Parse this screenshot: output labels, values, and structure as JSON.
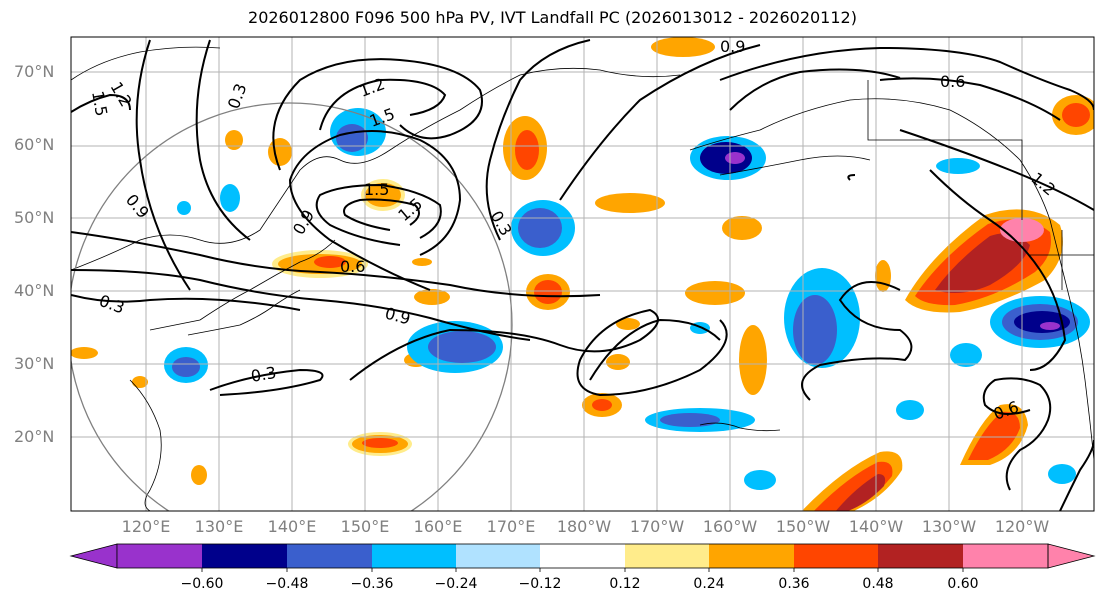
{
  "title": "2026012800 F096 500 hPa PV, IVT Landfall PC (2026013012 - 2026020112)",
  "lat_labels": [
    "70°N",
    "60°N",
    "50°N",
    "40°N",
    "30°N",
    "20°N"
  ],
  "lon_labels": [
    "120°E",
    "130°E",
    "140°E",
    "150°E",
    "160°E",
    "170°E",
    "180°W",
    "170°W",
    "160°W",
    "150°W",
    "140°W",
    "130°W",
    "120°W"
  ],
  "colorbar": {
    "ticks": [
      "−0.60",
      "−0.48",
      "−0.36",
      "−0.24",
      "−0.12",
      "0.12",
      "0.24",
      "0.36",
      "0.48",
      "0.60"
    ],
    "colors": [
      "#9932cc",
      "#00008b",
      "#3a5fcd",
      "#00bfff",
      "#b0e2ff",
      "#ffffff",
      "#ffec8b",
      "#ffa500",
      "#ff4500",
      "#b22222",
      "#ff82ab"
    ]
  },
  "contour_labels": [
    "0.9",
    "0.6",
    "0.3",
    "1.2",
    "1.5",
    "1.5",
    "1.2",
    "0.3",
    "0.9",
    "0.6",
    "1.5",
    "0.9",
    "0.3",
    "0.9",
    "0.3",
    "0.6",
    "1.2",
    "1.5"
  ]
}
